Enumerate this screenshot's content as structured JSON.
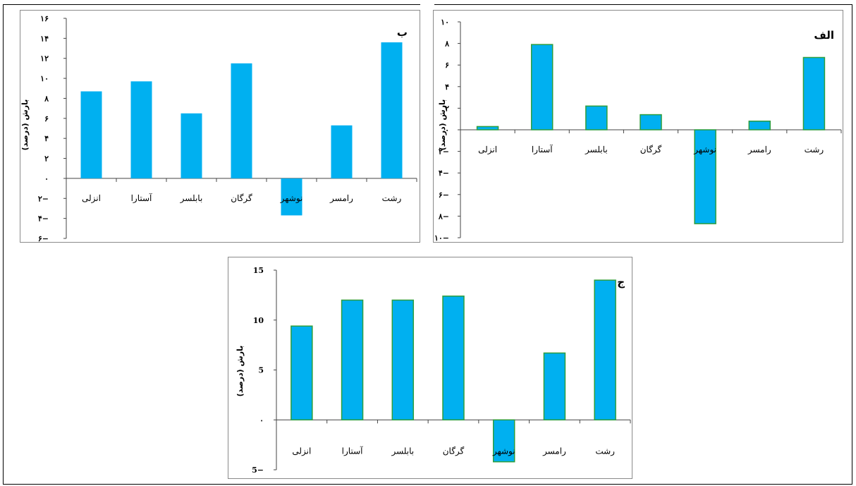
{
  "chart_data": [
    {
      "type": "bar",
      "title": "ب",
      "ylabel": "بارش (درصد)",
      "categories": [
        "انزلی",
        "آستارا",
        "بابلسر",
        "گرگان",
        "نوشهر",
        "رامسر",
        "رشت"
      ],
      "values": [
        8.7,
        9.7,
        6.5,
        11.5,
        -3.7,
        5.3,
        13.6
      ],
      "yticks": [
        16,
        14,
        12,
        10,
        8,
        6,
        4,
        2,
        0,
        -2,
        -4,
        -6
      ],
      "ytick_labels": [
        "۱۶",
        "۱۴",
        "۱۲",
        "۱۰",
        "۸",
        "۶",
        "۴",
        "۲",
        "۰",
        "۲−",
        "۴−",
        "۶−"
      ],
      "ylim": [
        -6,
        16
      ],
      "bar_stroke": "none",
      "bar_color": "#00B0F0"
    },
    {
      "type": "bar",
      "title": "الف",
      "ylabel": "بارش (درصد)",
      "categories": [
        "انزلی",
        "آستارا",
        "بابلسر",
        "گرگان",
        "نوشهر",
        "رامسر",
        "رشت"
      ],
      "values": [
        0.3,
        7.9,
        2.2,
        1.4,
        -8.7,
        0.8,
        6.7
      ],
      "yticks": [
        10,
        8,
        6,
        4,
        2,
        0,
        -2,
        -4,
        -6,
        -8,
        -10
      ],
      "ytick_labels": [
        "۱۰",
        "۸",
        "۶",
        "۴",
        "۲",
        "۰",
        "۲−",
        "۴−",
        "۶−",
        "۸−",
        "۱۰−"
      ],
      "ylim": [
        -10,
        10
      ],
      "bar_stroke": "#2E9E3E",
      "bar_color": "#00B0F0"
    },
    {
      "type": "bar",
      "title": "ج",
      "ylabel": "بارش (درصد)",
      "categories": [
        "انزلی",
        "آستارا",
        "بابلسر",
        "گرگان",
        "نوشهر",
        "رامسر",
        "رشت"
      ],
      "values": [
        9.4,
        12.0,
        12.0,
        12.4,
        -4.2,
        6.7,
        14.0
      ],
      "yticks": [
        15,
        10,
        5,
        0,
        -5
      ],
      "ytick_labels": [
        "15",
        "10",
        "5",
        "۰",
        "5−"
      ],
      "ylim": [
        -5,
        15
      ],
      "bar_stroke": "#2E9E3E",
      "bar_color": "#00B0F0"
    }
  ]
}
